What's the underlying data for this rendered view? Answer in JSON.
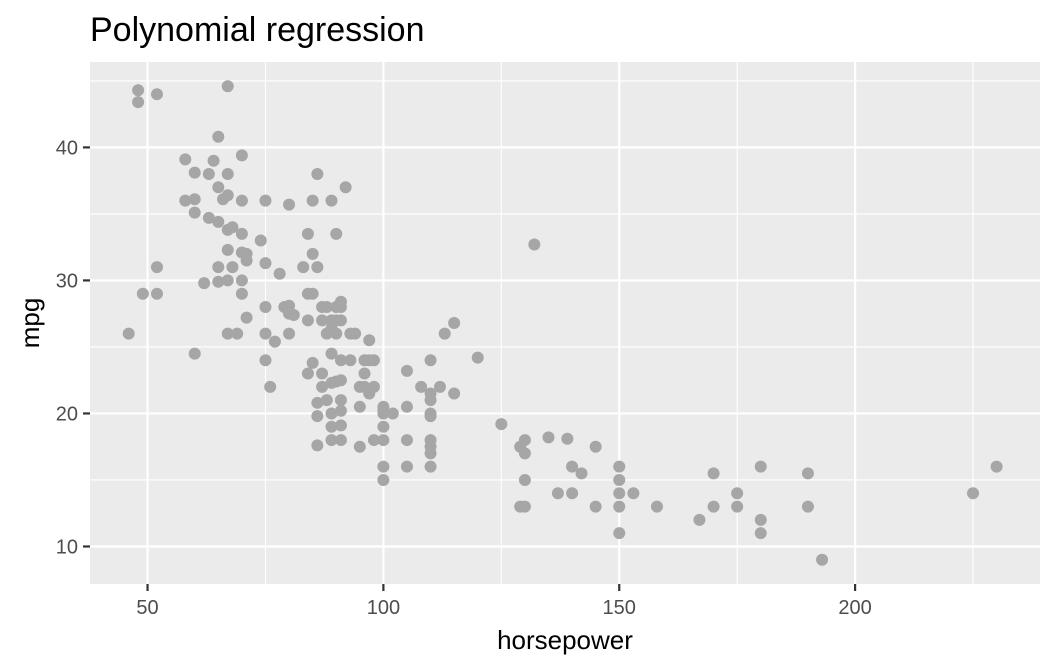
{
  "chart_data": {
    "type": "scatter",
    "title": "Polynomial regression",
    "xlabel": "horsepower",
    "ylabel": "mpg",
    "xlim": [
      37.8,
      239.2
    ],
    "ylim": [
      7.18,
      46.42
    ],
    "x_ticks": [
      50,
      100,
      150,
      200
    ],
    "y_ticks": [
      10,
      20,
      30,
      40
    ],
    "x_minor": [
      75,
      125,
      175,
      225
    ],
    "y_minor": [
      15,
      25,
      35,
      45
    ],
    "grid": true,
    "point_color": "#a6a6a6",
    "panel_color": "#ebebeb",
    "points": [
      [
        46,
        26
      ],
      [
        48,
        44.3
      ],
      [
        48,
        43.4
      ],
      [
        49,
        29
      ],
      [
        52,
        44
      ],
      [
        52,
        31
      ],
      [
        52,
        29
      ],
      [
        58,
        39.1
      ],
      [
        58,
        36
      ],
      [
        60,
        38.1
      ],
      [
        60,
        36.1
      ],
      [
        60,
        35.1
      ],
      [
        60,
        24.5
      ],
      [
        62,
        29.8
      ],
      [
        63,
        38
      ],
      [
        63,
        34.7
      ],
      [
        64,
        39
      ],
      [
        65,
        40.8
      ],
      [
        65,
        37
      ],
      [
        65,
        34.4
      ],
      [
        65,
        31
      ],
      [
        65,
        29.9
      ],
      [
        66,
        36.1
      ],
      [
        67,
        44.6
      ],
      [
        67,
        38
      ],
      [
        67,
        36.4
      ],
      [
        67,
        33.8
      ],
      [
        67,
        32.3
      ],
      [
        67,
        30
      ],
      [
        67,
        26
      ],
      [
        68,
        31
      ],
      [
        68,
        34
      ],
      [
        69,
        26
      ],
      [
        70,
        39.4
      ],
      [
        70,
        36
      ],
      [
        70,
        33.5
      ],
      [
        70,
        32.1
      ],
      [
        70,
        30
      ],
      [
        70,
        29
      ],
      [
        71,
        32
      ],
      [
        71,
        31.5
      ],
      [
        71,
        27.2
      ],
      [
        74,
        33
      ],
      [
        75,
        36
      ],
      [
        75,
        31.3
      ],
      [
        75,
        28
      ],
      [
        75,
        26
      ],
      [
        75,
        24
      ],
      [
        76,
        22
      ],
      [
        77,
        25.4
      ],
      [
        78,
        30.5
      ],
      [
        79,
        28
      ],
      [
        80,
        28.1
      ],
      [
        80,
        27.5
      ],
      [
        80,
        26
      ],
      [
        80,
        35.7
      ],
      [
        81,
        27.4
      ],
      [
        83,
        31
      ],
      [
        84,
        33.5
      ],
      [
        84,
        29
      ],
      [
        84,
        27
      ],
      [
        84,
        23
      ],
      [
        85,
        36
      ],
      [
        85,
        32
      ],
      [
        85,
        29
      ],
      [
        85,
        23.8
      ],
      [
        86,
        31
      ],
      [
        86,
        38
      ],
      [
        86,
        20.8
      ],
      [
        86,
        19.8
      ],
      [
        86,
        17.6
      ],
      [
        87,
        28
      ],
      [
        87,
        27
      ],
      [
        87,
        23
      ],
      [
        87,
        22
      ],
      [
        88,
        21
      ],
      [
        88,
        28
      ],
      [
        88,
        26
      ],
      [
        89,
        36
      ],
      [
        89,
        27
      ],
      [
        89,
        26.4
      ],
      [
        89,
        24.5
      ],
      [
        89,
        22.3
      ],
      [
        89,
        20
      ],
      [
        89,
        19
      ],
      [
        89,
        18
      ],
      [
        90,
        33.5
      ],
      [
        90,
        28
      ],
      [
        90,
        27
      ],
      [
        90,
        26
      ],
      [
        90,
        22.4
      ],
      [
        91,
        28.4
      ],
      [
        91,
        28
      ],
      [
        91,
        27
      ],
      [
        91,
        24
      ],
      [
        91,
        22.5
      ],
      [
        91,
        21
      ],
      [
        91,
        20.2
      ],
      [
        91,
        19.1
      ],
      [
        91,
        18
      ],
      [
        92,
        37
      ],
      [
        93,
        26
      ],
      [
        93,
        24
      ],
      [
        94,
        26
      ],
      [
        95,
        22
      ],
      [
        95,
        20.5
      ],
      [
        95,
        17.5
      ],
      [
        96,
        24
      ],
      [
        96,
        23
      ],
      [
        96,
        22
      ],
      [
        97,
        25.5
      ],
      [
        97,
        24
      ],
      [
        97,
        21.5
      ],
      [
        98,
        24
      ],
      [
        98,
        22
      ],
      [
        98,
        18
      ],
      [
        100,
        20.5
      ],
      [
        100,
        20.2
      ],
      [
        100,
        20
      ],
      [
        100,
        19
      ],
      [
        100,
        18
      ],
      [
        100,
        16
      ],
      [
        100,
        15
      ],
      [
        102,
        20
      ],
      [
        105,
        23.2
      ],
      [
        105,
        20.5
      ],
      [
        105,
        18
      ],
      [
        105,
        16
      ],
      [
        108,
        22
      ],
      [
        110,
        24
      ],
      [
        110,
        21.5
      ],
      [
        110,
        21
      ],
      [
        110,
        20
      ],
      [
        110,
        19.8
      ],
      [
        110,
        18
      ],
      [
        110,
        17.5
      ],
      [
        110,
        17
      ],
      [
        110,
        16
      ],
      [
        112,
        22
      ],
      [
        113,
        26
      ],
      [
        115,
        26.8
      ],
      [
        115,
        21.5
      ],
      [
        120,
        24.2
      ],
      [
        125,
        19.2
      ],
      [
        129,
        17.5
      ],
      [
        129,
        13
      ],
      [
        130,
        18
      ],
      [
        130,
        17
      ],
      [
        130,
        15
      ],
      [
        130,
        13
      ],
      [
        132,
        32.7
      ],
      [
        135,
        18.2
      ],
      [
        137,
        14
      ],
      [
        139,
        18.1
      ],
      [
        140,
        16
      ],
      [
        140,
        14
      ],
      [
        142,
        15.5
      ],
      [
        145,
        17.5
      ],
      [
        145,
        13
      ],
      [
        150,
        16
      ],
      [
        150,
        15
      ],
      [
        150,
        14
      ],
      [
        150,
        13
      ],
      [
        150,
        11
      ],
      [
        153,
        14
      ],
      [
        158,
        13
      ],
      [
        167,
        12
      ],
      [
        170,
        15.5
      ],
      [
        170,
        13
      ],
      [
        175,
        14
      ],
      [
        175,
        13
      ],
      [
        180,
        16
      ],
      [
        180,
        12
      ],
      [
        180,
        11
      ],
      [
        190,
        15.5
      ],
      [
        190,
        13
      ],
      [
        193,
        9
      ],
      [
        225,
        14
      ],
      [
        230,
        16
      ]
    ]
  }
}
